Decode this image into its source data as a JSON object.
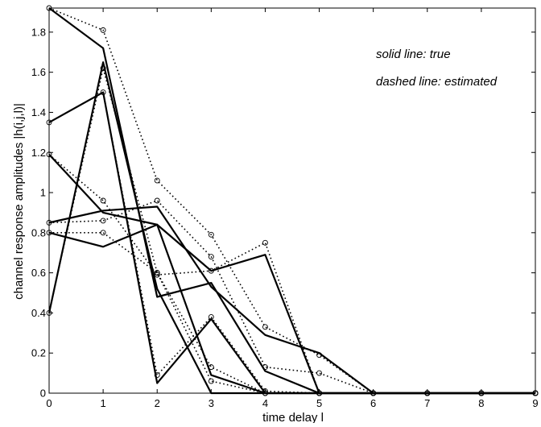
{
  "chart_data": {
    "type": "line",
    "title": "",
    "xlabel": "time delay l",
    "ylabel": "channel response amplitudes |h(i,j,l)|",
    "xlim": [
      0,
      9
    ],
    "ylim": [
      0,
      1.92
    ],
    "xticks": [
      0,
      1,
      2,
      3,
      4,
      5,
      6,
      7,
      8,
      9
    ],
    "xtick_labels": [
      "0",
      "1",
      "2",
      "3",
      "4",
      "5",
      "6",
      "7",
      "8",
      "9"
    ],
    "yticks": [
      0,
      0.2,
      0.4,
      0.6,
      0.8,
      1,
      1.2,
      1.4,
      1.6,
      1.8
    ],
    "ytick_labels": [
      "0",
      "0.2",
      "0.4",
      "0.6",
      "0.8",
      "1",
      "1.2",
      "1.4",
      "1.6",
      "1.8"
    ],
    "grid": false,
    "x": [
      0,
      1,
      2,
      3,
      4,
      5,
      6,
      7,
      8,
      9
    ],
    "annotations": [
      "solid line: true",
      "dashed line: estimated"
    ],
    "colors": {
      "line": "#000000",
      "background": "#ffffff"
    },
    "series": [
      {
        "style": "solid",
        "values": [
          1.92,
          1.72,
          0.48,
          0.55,
          0.11,
          0.0,
          0.0,
          0.0,
          0.0,
          0.0
        ]
      },
      {
        "style": "solid",
        "values": [
          0.4,
          1.65,
          0.52,
          0.0,
          0.0,
          0.0,
          0.0,
          0.0,
          0.0,
          0.0
        ]
      },
      {
        "style": "solid",
        "values": [
          1.35,
          1.5,
          0.05,
          0.37,
          0.0,
          0.0,
          0.0,
          0.0,
          0.0,
          0.0
        ]
      },
      {
        "style": "solid",
        "values": [
          1.19,
          0.9,
          0.84,
          0.61,
          0.69,
          0.0,
          0.0,
          0.0,
          0.0,
          0.0
        ]
      },
      {
        "style": "solid",
        "values": [
          0.85,
          0.91,
          0.93,
          0.53,
          0.29,
          0.2,
          0.0,
          0.0,
          0.0,
          0.0
        ]
      },
      {
        "style": "solid",
        "values": [
          0.8,
          0.73,
          0.84,
          0.09,
          0.0,
          0.0,
          0.0,
          0.0,
          0.0,
          0.0
        ]
      },
      {
        "style": "dashed",
        "marker": "circle",
        "values": [
          1.92,
          1.81,
          1.06,
          0.79,
          0.33,
          0.19,
          0.0,
          0.0,
          0.0,
          0.0
        ]
      },
      {
        "style": "dashed",
        "marker": "circle",
        "values": [
          0.4,
          1.62,
          0.6,
          0.06,
          0.0,
          0.0,
          0.0,
          0.0,
          0.0,
          0.0
        ]
      },
      {
        "style": "dashed",
        "marker": "circle",
        "values": [
          1.35,
          1.5,
          0.09,
          0.38,
          0.01,
          0.0,
          0.0,
          0.0,
          0.0,
          0.0
        ]
      },
      {
        "style": "dashed",
        "marker": "circle",
        "values": [
          1.19,
          0.96,
          0.59,
          0.61,
          0.75,
          0.0,
          0.0,
          0.0,
          0.0,
          0.0
        ]
      },
      {
        "style": "dashed",
        "marker": "circle",
        "values": [
          0.85,
          0.86,
          0.96,
          0.68,
          0.13,
          0.1,
          0.0,
          0.0,
          0.0,
          0.0
        ]
      },
      {
        "style": "dashed",
        "marker": "circle",
        "values": [
          0.8,
          0.8,
          0.6,
          0.13,
          0.0,
          0.0,
          0.0,
          0.0,
          0.0,
          0.0
        ]
      }
    ]
  }
}
